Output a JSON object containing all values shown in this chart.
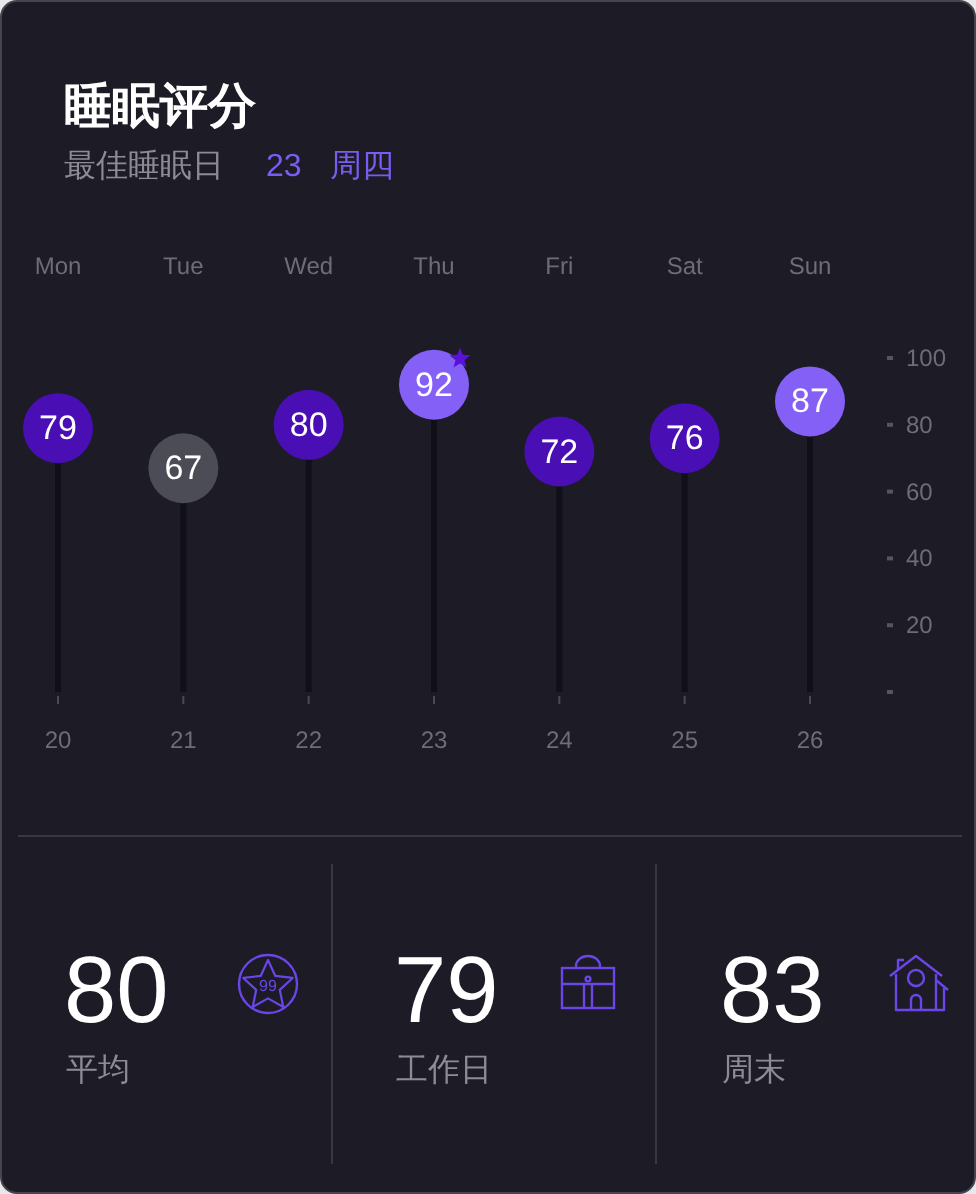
{
  "chart_data": [
    {
      "type": "lollipop",
      "title": "睡眠评分",
      "subtitle": "最佳睡眠日 23 周四",
      "categories": [
        "Mon",
        "Tue",
        "Wed",
        "Thu",
        "Fri",
        "Sat",
        "Sun"
      ],
      "values": [
        79,
        67,
        80,
        92,
        72,
        76,
        87
      ],
      "colors": [
        "#4a0fb4",
        "#4b4c56",
        "#4a0fb4",
        "#8560f6",
        "#4a0fb4",
        "#4a0fb4",
        "#8560f6"
      ],
      "x2lim": [
        20,
        26
      ],
      "x2ticks": [
        20,
        21,
        22,
        23,
        24,
        25,
        26
      ],
      "ylim": [
        0,
        100
      ],
      "yticks": [
        {
          "value": 0,
          "label": null
        },
        20,
        40,
        60,
        80,
        100
      ],
      "marker": "circle",
      "data_labels": true
    },
    {
      "type": "other",
      "annotations": [
        "80",
        "平均",
        "79",
        "工作日",
        "83",
        "周末",
        "99"
      ]
    }
  ]
}
